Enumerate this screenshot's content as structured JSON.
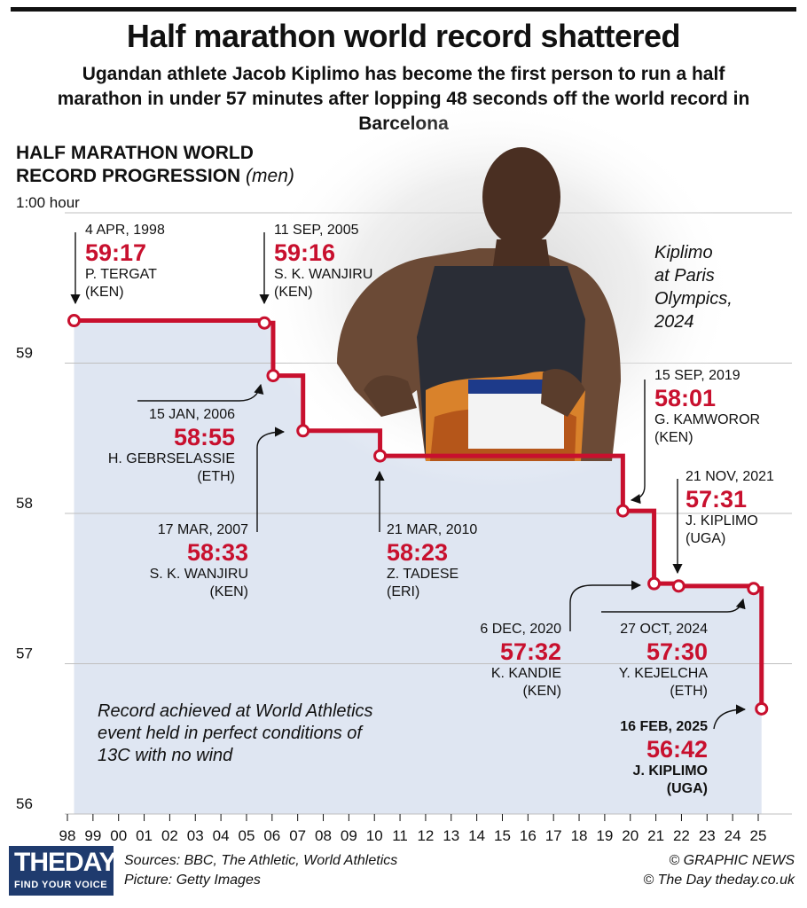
{
  "headline": "Half marathon world record shattered",
  "subhead": "Ugandan athlete Jacob Kiplimo has become the first person to run a half marathon in under 57 minutes after lopping 48 seconds off the world record in Barcelona",
  "section_title": {
    "line1": "HALF MARATHON WORLD",
    "line2": "RECORD PROGRESSION",
    "sub": "(men)"
  },
  "photo_caption": [
    "Kiplimo",
    "at Paris",
    "Olympics,",
    "2024"
  ],
  "note": "Record achieved at World Athletics event held in perfect conditions of 13C with no wind",
  "footer": {
    "logo_main": "THEDAY",
    "logo_tagline": "FIND YOUR VOICE",
    "sources": "Sources: BBC, The Athletic, World Athletics",
    "picture": "Picture: Getty Images",
    "credit1": "© GRAPHIC NEWS",
    "credit2": "© The Day   theday.co.uk"
  },
  "colors": {
    "record_line": "#c8102e",
    "area_fill": "#dfe6f2",
    "grid": "#bfbfbf",
    "text": "#111111"
  },
  "chart_data": {
    "type": "line",
    "step": true,
    "y_unit": "minutes",
    "ylim": [
      56,
      60
    ],
    "yticks": [
      {
        "value": 60,
        "label": "1:00 hour"
      },
      {
        "value": 59,
        "label": "59"
      },
      {
        "value": 58,
        "label": "58"
      },
      {
        "value": 57,
        "label": "57"
      },
      {
        "value": 56,
        "label": "56"
      }
    ],
    "xlim": [
      1998,
      2025.6
    ],
    "xticks": [
      "98",
      "99",
      "00",
      "01",
      "02",
      "03",
      "04",
      "05",
      "06",
      "07",
      "08",
      "09",
      "10",
      "11",
      "12",
      "13",
      "14",
      "15",
      "16",
      "17",
      "18",
      "19",
      "20",
      "21",
      "22",
      "23",
      "24",
      "25"
    ],
    "records": [
      {
        "x": 1998.26,
        "minutes": 59.283,
        "time": "59:17",
        "date": "4 APR, 1998",
        "athlete": "P. TERGAT",
        "country": "(KEN)"
      },
      {
        "x": 2005.7,
        "minutes": 59.267,
        "time": "59:16",
        "date": "11 SEP, 2005",
        "athlete": "S. K. WANJIRU",
        "country": "(KEN)"
      },
      {
        "x": 2006.04,
        "minutes": 58.917,
        "time": "58:55",
        "date": "15 JAN, 2006",
        "athlete": "H. GEBRSELASSIE",
        "country": "(ETH)"
      },
      {
        "x": 2007.21,
        "minutes": 58.55,
        "time": "58:33",
        "date": "17 MAR, 2007",
        "athlete": "S. K. WANJIRU",
        "country": "(KEN)"
      },
      {
        "x": 2010.22,
        "minutes": 58.383,
        "time": "58:23",
        "date": "21 MAR, 2010",
        "athlete": "Z. TADESE",
        "country": "(ERI)"
      },
      {
        "x": 2019.71,
        "minutes": 58.017,
        "time": "58:01",
        "date": "15 SEP, 2019",
        "athlete": "G. KAMWOROR",
        "country": "(KEN)"
      },
      {
        "x": 2020.93,
        "minutes": 57.533,
        "time": "57:32",
        "date": "6 DEC, 2020",
        "athlete": "K. KANDIE",
        "country": "(KEN)"
      },
      {
        "x": 2021.89,
        "minutes": 57.517,
        "time": "57:31",
        "date": "21 NOV, 2021",
        "athlete": "J. KIPLIMO",
        "country": "(UGA)"
      },
      {
        "x": 2024.82,
        "minutes": 57.5,
        "time": "57:30",
        "date": "27 OCT, 2024",
        "athlete": "Y. KEJELCHA",
        "country": "(ETH)"
      },
      {
        "x": 2025.13,
        "minutes": 56.7,
        "time": "56:42",
        "date": "16 FEB, 2025",
        "athlete": "J. KIPLIMO",
        "country": "(UGA)"
      }
    ]
  }
}
